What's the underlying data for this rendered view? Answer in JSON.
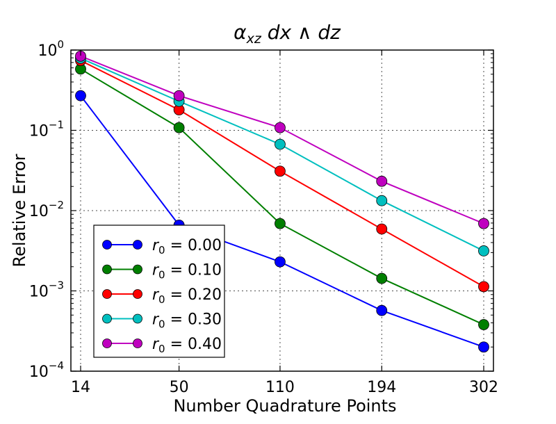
{
  "chart_data": {
    "type": "line",
    "title": "αxz dx ∧ dz",
    "xlabel": "Number Quadrature Points",
    "ylabel": "Relative Error",
    "x": [
      14,
      50,
      110,
      194,
      302
    ],
    "x_tick_labels": [
      "14",
      "50",
      "110",
      "194",
      "302"
    ],
    "y_scale": "log",
    "ylim": [
      0.0001,
      1
    ],
    "y_ticks": [
      {
        "base": "10",
        "exp": "0"
      },
      {
        "base": "10",
        "exp": "−1"
      },
      {
        "base": "10",
        "exp": "−2"
      },
      {
        "base": "10",
        "exp": "−3"
      },
      {
        "base": "10",
        "exp": "−4"
      }
    ],
    "grid": true,
    "legend_position": "lower-left",
    "series": [
      {
        "name": "r0 = 0.00",
        "label_var": "r",
        "label_sub": "0",
        "label_rest": " = 0.00",
        "color": "#0000ff",
        "values": [
          0.27,
          0.0066,
          0.0023,
          0.00057,
          0.0002
        ]
      },
      {
        "name": "r0 = 0.10",
        "label_var": "r",
        "label_sub": "0",
        "label_rest": " = 0.10",
        "color": "#007f00",
        "values": [
          0.58,
          0.108,
          0.0069,
          0.00143,
          0.00038
        ]
      },
      {
        "name": "r0 = 0.20",
        "label_var": "r",
        "label_sub": "0",
        "label_rest": " = 0.20",
        "color": "#ff0000",
        "values": [
          0.74,
          0.18,
          0.031,
          0.0059,
          0.00113
        ]
      },
      {
        "name": "r0 = 0.30",
        "label_var": "r",
        "label_sub": "0",
        "label_rest": " = 0.30",
        "color": "#00bfbf",
        "values": [
          0.79,
          0.23,
          0.067,
          0.0133,
          0.00315
        ]
      },
      {
        "name": "r0 = 0.40",
        "label_var": "r",
        "label_sub": "0",
        "label_rest": " = 0.40",
        "color": "#bf00bf",
        "values": [
          0.84,
          0.27,
          0.108,
          0.0232,
          0.0069
        ]
      }
    ]
  }
}
